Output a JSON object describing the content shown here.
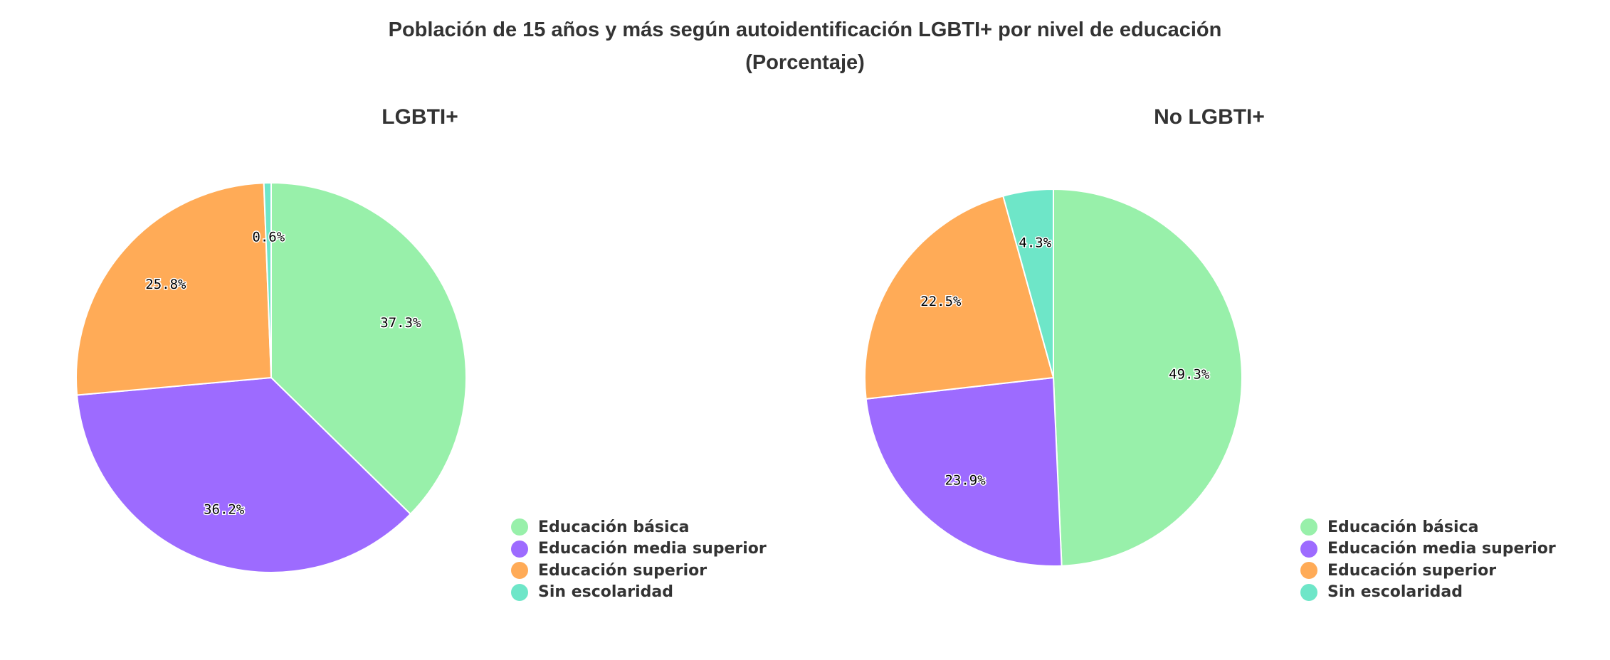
{
  "title": "Población de 15 años y más según autoidentificación LGBTI+ por nivel de educación",
  "subtitle": "(Porcentaje)",
  "chart_data": [
    {
      "type": "pie",
      "title": "LGBTI+",
      "categories": [
        "Educación básica",
        "Educación media superior",
        "Educación superior",
        "Sin escolaridad"
      ],
      "values": [
        37.3,
        36.2,
        25.8,
        0.6
      ],
      "labels": [
        "37.3%",
        "36.2%",
        "25.8%",
        "0.6%"
      ],
      "colors": [
        "#98f0aa",
        "#9d6bff",
        "#ffab57",
        "#6ee6c8"
      ],
      "legend_position": "bottom-right",
      "direction": "clockwise from top"
    },
    {
      "type": "pie",
      "title": "No LGBTI+",
      "categories": [
        "Educación básica",
        "Educación media superior",
        "Educación superior",
        "Sin escolaridad"
      ],
      "values": [
        49.3,
        23.9,
        22.5,
        4.3
      ],
      "labels": [
        "49.3%",
        "23.9%",
        "22.5%",
        "4.3%"
      ],
      "colors": [
        "#98f0aa",
        "#9d6bff",
        "#ffab57",
        "#6ee6c8"
      ],
      "legend_position": "bottom-right",
      "direction": "clockwise from top"
    }
  ]
}
